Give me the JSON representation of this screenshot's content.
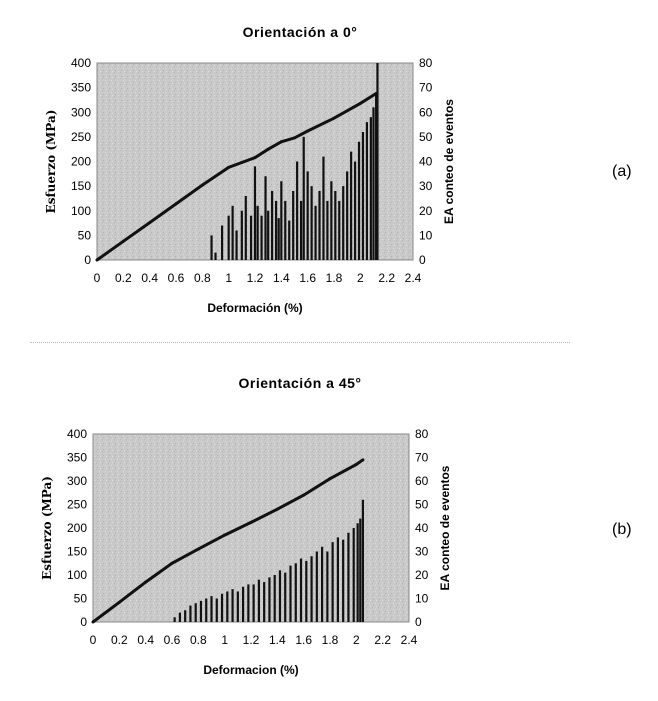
{
  "chart_data": [
    {
      "type": "line",
      "title": "Orientación a 0°",
      "panel_label": "(a)",
      "xlabel": "Deformación (%)",
      "ylabel": "Esfuerzo (MPa)",
      "y2label": "EA conteo de eventos",
      "xlim": [
        0,
        2.4
      ],
      "ylim": [
        0,
        400
      ],
      "y2lim": [
        0,
        80
      ],
      "xticks": [
        "0",
        "0.2",
        "0.4",
        "0.6",
        "0.8",
        "1",
        "1.2",
        "1.4",
        "1.6",
        "1.8",
        "2",
        "2.2",
        "2.4"
      ],
      "yticks": [
        "0",
        "50",
        "100",
        "150",
        "200",
        "250",
        "300",
        "350",
        "400"
      ],
      "y2ticks": [
        "0",
        "10",
        "20",
        "30",
        "40",
        "50",
        "60",
        "70",
        "80"
      ],
      "grid": false,
      "series": [
        {
          "axis": "left",
          "kind": "line",
          "x": [
            0,
            0.2,
            0.4,
            0.6,
            0.8,
            1.0,
            1.1,
            1.2,
            1.3,
            1.4,
            1.5,
            1.6,
            1.8,
            2.0,
            2.12
          ],
          "y": [
            0,
            38,
            76,
            114,
            152,
            188,
            198,
            208,
            225,
            240,
            248,
            262,
            288,
            318,
            338
          ]
        },
        {
          "axis": "right",
          "kind": "spikes",
          "x": [
            0.87,
            0.9,
            0.95,
            1.0,
            1.03,
            1.06,
            1.1,
            1.13,
            1.17,
            1.2,
            1.22,
            1.25,
            1.28,
            1.3,
            1.33,
            1.36,
            1.38,
            1.4,
            1.43,
            1.46,
            1.49,
            1.52,
            1.55,
            1.57,
            1.6,
            1.63,
            1.66,
            1.69,
            1.72,
            1.75,
            1.78,
            1.81,
            1.84,
            1.87,
            1.9,
            1.93,
            1.96,
            1.99,
            2.02,
            2.05,
            2.08,
            2.1,
            2.12,
            2.13
          ],
          "y": [
            10,
            3,
            14,
            18,
            22,
            12,
            20,
            26,
            18,
            38,
            22,
            18,
            34,
            20,
            28,
            24,
            17,
            32,
            24,
            16,
            28,
            40,
            24,
            50,
            36,
            30,
            22,
            28,
            42,
            24,
            32,
            28,
            24,
            30,
            36,
            44,
            40,
            48,
            52,
            56,
            58,
            62,
            68,
            80
          ]
        }
      ]
    },
    {
      "type": "line",
      "title": "Orientación a 45°",
      "panel_label": "(b)",
      "xlabel": "Deformacion (%)",
      "ylabel": "Esfuerzo (MPa)",
      "y2label": "EA conteo de eventos",
      "xlim": [
        0,
        2.4
      ],
      "ylim": [
        0,
        400
      ],
      "y2lim": [
        0,
        80
      ],
      "xticks": [
        "0",
        "0.2",
        "0.4",
        "0.6",
        "0.8",
        "1",
        "1.2",
        "1.4",
        "1.6",
        "1.8",
        "2",
        "2.2",
        "2.4"
      ],
      "yticks": [
        "0",
        "50",
        "100",
        "150",
        "200",
        "250",
        "300",
        "350",
        "400"
      ],
      "y2ticks": [
        "0",
        "10",
        "20",
        "30",
        "40",
        "50",
        "60",
        "70",
        "80"
      ],
      "grid": false,
      "series": [
        {
          "axis": "left",
          "kind": "line",
          "x": [
            0,
            0.2,
            0.4,
            0.6,
            0.8,
            1.0,
            1.2,
            1.4,
            1.6,
            1.8,
            2.0,
            2.05
          ],
          "y": [
            0,
            42,
            85,
            125,
            155,
            185,
            212,
            240,
            270,
            305,
            335,
            345
          ]
        },
        {
          "axis": "right",
          "kind": "spikes",
          "x": [
            0.62,
            0.66,
            0.7,
            0.74,
            0.78,
            0.82,
            0.86,
            0.9,
            0.94,
            0.98,
            1.02,
            1.06,
            1.1,
            1.14,
            1.18,
            1.22,
            1.26,
            1.3,
            1.34,
            1.38,
            1.42,
            1.46,
            1.5,
            1.54,
            1.58,
            1.62,
            1.66,
            1.7,
            1.74,
            1.78,
            1.82,
            1.86,
            1.9,
            1.94,
            1.98,
            2.01,
            2.03,
            2.05
          ],
          "y": [
            2,
            4,
            5,
            7,
            8,
            9,
            10,
            11,
            10,
            12,
            13,
            14,
            13,
            15,
            16,
            16,
            18,
            17,
            19,
            20,
            22,
            21,
            24,
            25,
            27,
            26,
            28,
            30,
            32,
            30,
            34,
            36,
            35,
            38,
            40,
            42,
            44,
            52
          ]
        }
      ]
    }
  ]
}
